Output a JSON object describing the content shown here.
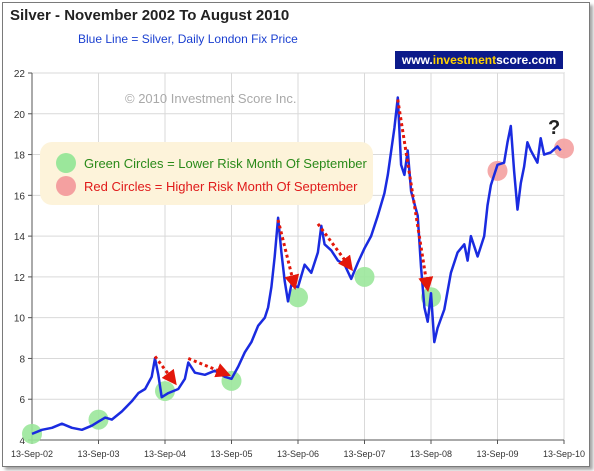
{
  "title": "Silver - November 2002 To August 2010",
  "subtitle": "Blue Line = Silver, Daily London Fix Price",
  "brand": {
    "prefix": "www.",
    "highlight": "investment",
    "suffix": "score.com"
  },
  "watermark": "© 2010 Investment Score Inc.",
  "legend": {
    "green": "Green Circles = Lower Risk Month Of September",
    "red": "Red Circles = Higher Risk Month Of September"
  },
  "question_mark": "?",
  "colors": {
    "series": "#1a2be0",
    "green_circle": "#9be79b",
    "red_circle": "#f4a0a0",
    "arrow": "#e3170a",
    "legend_bg": "#fdf3da",
    "brand_bg": "#0b1a8a"
  },
  "chart_data": {
    "type": "line",
    "title": "Silver - November 2002 To August 2010",
    "xlabel": "",
    "ylabel": "",
    "ylim": [
      4,
      22
    ],
    "y_ticks": [
      4,
      6,
      8,
      10,
      12,
      14,
      16,
      18,
      20,
      22
    ],
    "x_ticks": [
      "13-Sep-02",
      "13-Sep-03",
      "13-Sep-04",
      "13-Sep-05",
      "13-Sep-06",
      "13-Sep-07",
      "13-Sep-08",
      "13-Sep-09",
      "13-Sep-10"
    ],
    "grid": true,
    "series": [
      {
        "values": [
          [
            0.0,
            4.3
          ],
          [
            0.15,
            4.5
          ],
          [
            0.3,
            4.6
          ],
          [
            0.45,
            4.8
          ],
          [
            0.6,
            4.6
          ],
          [
            0.75,
            4.5
          ],
          [
            0.9,
            4.7
          ],
          [
            1.0,
            4.9
          ],
          [
            1.1,
            5.1
          ],
          [
            1.2,
            5.0
          ],
          [
            1.35,
            5.4
          ],
          [
            1.5,
            5.9
          ],
          [
            1.6,
            6.3
          ],
          [
            1.7,
            6.5
          ],
          [
            1.8,
            7.1
          ],
          [
            1.85,
            8.0
          ],
          [
            1.9,
            7.2
          ],
          [
            1.95,
            6.1
          ],
          [
            2.05,
            6.3
          ],
          [
            2.2,
            6.5
          ],
          [
            2.3,
            7.0
          ],
          [
            2.35,
            7.8
          ],
          [
            2.45,
            7.3
          ],
          [
            2.6,
            7.2
          ],
          [
            2.75,
            7.4
          ],
          [
            2.9,
            7.1
          ],
          [
            3.0,
            7.0
          ],
          [
            3.1,
            7.6
          ],
          [
            3.2,
            8.3
          ],
          [
            3.3,
            8.8
          ],
          [
            3.4,
            9.6
          ],
          [
            3.5,
            10.0
          ],
          [
            3.55,
            10.5
          ],
          [
            3.6,
            11.5
          ],
          [
            3.65,
            13.0
          ],
          [
            3.7,
            14.9
          ],
          [
            3.75,
            13.2
          ],
          [
            3.8,
            11.8
          ],
          [
            3.85,
            10.8
          ],
          [
            3.9,
            11.6
          ],
          [
            4.0,
            11.5
          ],
          [
            4.1,
            12.6
          ],
          [
            4.2,
            12.2
          ],
          [
            4.3,
            13.2
          ],
          [
            4.35,
            14.5
          ],
          [
            4.4,
            13.6
          ],
          [
            4.5,
            13.3
          ],
          [
            4.6,
            12.8
          ],
          [
            4.7,
            12.6
          ],
          [
            4.8,
            11.9
          ],
          [
            4.9,
            12.7
          ],
          [
            5.0,
            13.4
          ],
          [
            5.1,
            14.0
          ],
          [
            5.2,
            15.0
          ],
          [
            5.3,
            16.1
          ],
          [
            5.35,
            17.0
          ],
          [
            5.45,
            19.3
          ],
          [
            5.5,
            20.8
          ],
          [
            5.55,
            17.5
          ],
          [
            5.6,
            17.0
          ],
          [
            5.65,
            18.2
          ],
          [
            5.7,
            16.2
          ],
          [
            5.8,
            15.0
          ],
          [
            5.85,
            12.5
          ],
          [
            5.9,
            10.5
          ],
          [
            5.95,
            9.8
          ],
          [
            6.0,
            11.2
          ],
          [
            6.05,
            8.8
          ],
          [
            6.1,
            9.5
          ],
          [
            6.2,
            10.4
          ],
          [
            6.3,
            12.2
          ],
          [
            6.4,
            13.2
          ],
          [
            6.5,
            13.6
          ],
          [
            6.55,
            12.8
          ],
          [
            6.6,
            14.0
          ],
          [
            6.7,
            13.0
          ],
          [
            6.8,
            14.0
          ],
          [
            6.85,
            15.5
          ],
          [
            6.9,
            16.5
          ],
          [
            6.95,
            17.0
          ],
          [
            7.0,
            17.5
          ],
          [
            7.1,
            17.6
          ],
          [
            7.15,
            18.6
          ],
          [
            7.2,
            19.4
          ],
          [
            7.25,
            17.2
          ],
          [
            7.3,
            15.3
          ],
          [
            7.35,
            16.6
          ],
          [
            7.4,
            17.4
          ],
          [
            7.45,
            18.6
          ],
          [
            7.5,
            18.2
          ],
          [
            7.6,
            17.6
          ],
          [
            7.65,
            18.8
          ],
          [
            7.7,
            18.0
          ],
          [
            7.8,
            18.1
          ],
          [
            7.9,
            18.4
          ],
          [
            7.95,
            18.2
          ]
        ]
      }
    ],
    "green_circles": [
      [
        0.0,
        4.3
      ],
      [
        1.0,
        5.0
      ],
      [
        2.0,
        6.4
      ],
      [
        3.0,
        6.9
      ],
      [
        4.0,
        11.0
      ],
      [
        5.0,
        12.0
      ],
      [
        6.0,
        11.0
      ]
    ],
    "red_circles": [
      [
        7.0,
        17.2
      ],
      [
        8.0,
        18.3
      ]
    ],
    "trend_arrows": [
      [
        [
          1.85,
          8.1
        ],
        [
          2.15,
          6.8
        ]
      ],
      [
        [
          2.35,
          8.0
        ],
        [
          2.95,
          7.2
        ]
      ],
      [
        [
          3.7,
          14.8
        ],
        [
          3.95,
          11.5
        ]
      ],
      [
        [
          4.3,
          14.6
        ],
        [
          4.8,
          12.4
        ]
      ],
      [
        [
          5.5,
          20.7
        ],
        [
          5.95,
          11.4
        ]
      ]
    ]
  }
}
